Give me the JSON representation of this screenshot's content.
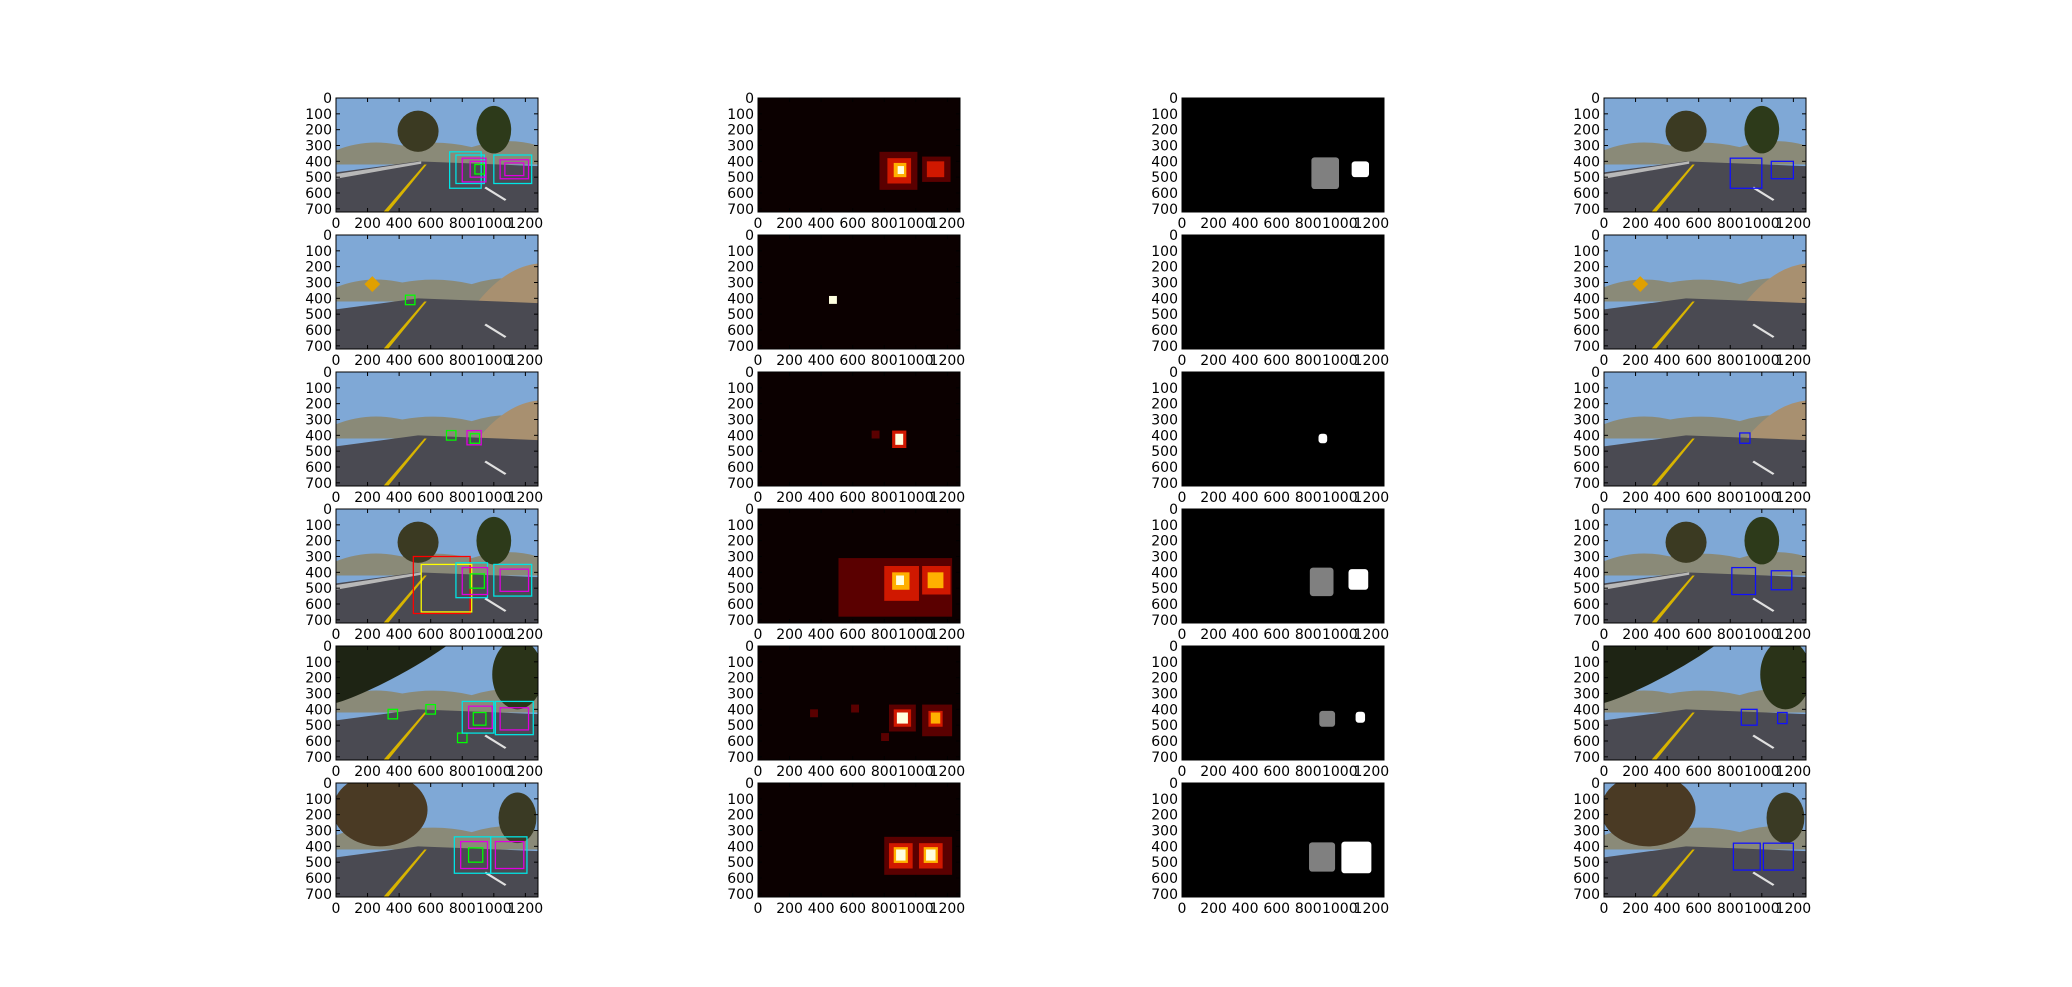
{
  "chart_data": {
    "type": "image-grid",
    "rows": 6,
    "cols": 4,
    "xlim": [
      0,
      1280
    ],
    "ylim": [
      720,
      0
    ],
    "xticks": [
      0,
      200,
      400,
      600,
      800,
      1000,
      1200
    ],
    "yticks": [
      0,
      100,
      200,
      300,
      400,
      500,
      600,
      700
    ],
    "xtick_labels": [
      "0",
      "200",
      "400",
      "600",
      "800",
      "1000",
      "1200"
    ],
    "ytick_labels": [
      "0",
      "100",
      "200",
      "300",
      "400",
      "500",
      "600",
      "700"
    ],
    "column_kinds": [
      "sliding-window detections",
      "heatmap",
      "labels",
      "final detections"
    ],
    "colors": {
      "sky": "#7fa8d6",
      "hills": "#8a8a78",
      "road": "#4a4a52",
      "lane_yellow": "#d8b400",
      "window_cyan": "#00e5e5",
      "window_magenta": "#e000e0",
      "window_green": "#00ff00",
      "window_red": "#ff0000",
      "window_yellow": "#ffff00",
      "box_blue": "#1010ff",
      "heat_bg": "#0b0000",
      "heat_low": "#5a0000",
      "heat_mid": "#d01800",
      "heat_high": "#ffb000",
      "heat_peak": "#ffffe0",
      "label_bg": "#000000",
      "label_gray": "#808080",
      "label_white": "#ffffff"
    },
    "panels": [
      {
        "scene": {
          "variant": "bridge",
          "tree_x": 520
        },
        "windows": [
          {
            "x": 720,
            "y": 340,
            "w": 200,
            "h": 230,
            "color": "cyan"
          },
          {
            "x": 760,
            "y": 360,
            "w": 180,
            "h": 180,
            "color": "cyan"
          },
          {
            "x": 800,
            "y": 380,
            "w": 150,
            "h": 150,
            "color": "magenta"
          },
          {
            "x": 850,
            "y": 400,
            "w": 100,
            "h": 100,
            "color": "magenta"
          },
          {
            "x": 880,
            "y": 420,
            "w": 60,
            "h": 60,
            "color": "green"
          },
          {
            "x": 1000,
            "y": 360,
            "w": 240,
            "h": 180,
            "color": "cyan"
          },
          {
            "x": 1040,
            "y": 390,
            "w": 180,
            "h": 120,
            "color": "magenta"
          },
          {
            "x": 1070,
            "y": 410,
            "w": 120,
            "h": 80,
            "color": "magenta"
          }
        ],
        "heat": [
          {
            "x": 770,
            "y": 340,
            "w": 240,
            "h": 240,
            "level": 1
          },
          {
            "x": 820,
            "y": 380,
            "w": 150,
            "h": 160,
            "level": 2
          },
          {
            "x": 860,
            "y": 410,
            "w": 80,
            "h": 90,
            "level": 3
          },
          {
            "x": 885,
            "y": 430,
            "w": 40,
            "h": 50,
            "level": 4
          },
          {
            "x": 1040,
            "y": 370,
            "w": 180,
            "h": 160,
            "level": 1
          },
          {
            "x": 1070,
            "y": 400,
            "w": 110,
            "h": 100,
            "level": 2
          }
        ],
        "labels": [
          {
            "x": 820,
            "y": 375,
            "w": 175,
            "h": 200,
            "color": "gray"
          },
          {
            "x": 1075,
            "y": 400,
            "w": 110,
            "h": 100,
            "color": "white"
          }
        ],
        "final": [
          {
            "x": 800,
            "y": 380,
            "w": 200,
            "h": 190
          },
          {
            "x": 1060,
            "y": 400,
            "w": 140,
            "h": 110
          }
        ]
      },
      {
        "scene": {
          "variant": "hills",
          "sign": true
        },
        "windows": [
          {
            "x": 440,
            "y": 380,
            "w": 60,
            "h": 60,
            "color": "green"
          }
        ],
        "heat": [
          {
            "x": 450,
            "y": 385,
            "w": 50,
            "h": 50,
            "level": 4
          }
        ],
        "labels": [],
        "final": []
      },
      {
        "scene": {
          "variant": "hills",
          "sign": false
        },
        "windows": [
          {
            "x": 700,
            "y": 370,
            "w": 60,
            "h": 60,
            "color": "green"
          },
          {
            "x": 830,
            "y": 370,
            "w": 90,
            "h": 90,
            "color": "magenta"
          },
          {
            "x": 850,
            "y": 390,
            "w": 60,
            "h": 60,
            "color": "green"
          }
        ],
        "heat": [
          {
            "x": 720,
            "y": 370,
            "w": 50,
            "h": 50,
            "level": 1
          },
          {
            "x": 850,
            "y": 370,
            "w": 90,
            "h": 110,
            "level": 2
          },
          {
            "x": 870,
            "y": 390,
            "w": 50,
            "h": 70,
            "level": 4
          }
        ],
        "labels": [
          {
            "x": 865,
            "y": 390,
            "w": 55,
            "h": 60,
            "color": "white"
          }
        ],
        "final": [
          {
            "x": 860,
            "y": 385,
            "w": 65,
            "h": 65
          }
        ]
      },
      {
        "scene": {
          "variant": "bridge",
          "tree_x": 520
        },
        "windows": [
          {
            "x": 490,
            "y": 300,
            "w": 360,
            "h": 360,
            "color": "red"
          },
          {
            "x": 540,
            "y": 350,
            "w": 320,
            "h": 300,
            "color": "yellow"
          },
          {
            "x": 760,
            "y": 340,
            "w": 200,
            "h": 220,
            "color": "cyan"
          },
          {
            "x": 800,
            "y": 370,
            "w": 160,
            "h": 170,
            "color": "magenta"
          },
          {
            "x": 850,
            "y": 410,
            "w": 90,
            "h": 90,
            "color": "green"
          },
          {
            "x": 1000,
            "y": 350,
            "w": 240,
            "h": 200,
            "color": "cyan"
          },
          {
            "x": 1040,
            "y": 380,
            "w": 180,
            "h": 140,
            "color": "magenta"
          }
        ],
        "heat": [
          {
            "x": 510,
            "y": 310,
            "w": 720,
            "h": 370,
            "level": 1
          },
          {
            "x": 800,
            "y": 360,
            "w": 220,
            "h": 220,
            "level": 2
          },
          {
            "x": 850,
            "y": 400,
            "w": 110,
            "h": 110,
            "level": 3
          },
          {
            "x": 875,
            "y": 420,
            "w": 50,
            "h": 60,
            "level": 4
          },
          {
            "x": 1040,
            "y": 360,
            "w": 180,
            "h": 180,
            "level": 2
          },
          {
            "x": 1075,
            "y": 400,
            "w": 100,
            "h": 100,
            "level": 3
          }
        ],
        "labels": [
          {
            "x": 810,
            "y": 370,
            "w": 150,
            "h": 180,
            "color": "gray"
          },
          {
            "x": 1055,
            "y": 380,
            "w": 125,
            "h": 130,
            "color": "white"
          }
        ],
        "final": [
          {
            "x": 810,
            "y": 370,
            "w": 150,
            "h": 170
          },
          {
            "x": 1060,
            "y": 390,
            "w": 130,
            "h": 120
          }
        ]
      },
      {
        "scene": {
          "variant": "trees"
        },
        "windows": [
          {
            "x": 330,
            "y": 400,
            "w": 60,
            "h": 60,
            "color": "green"
          },
          {
            "x": 570,
            "y": 370,
            "w": 60,
            "h": 60,
            "color": "green"
          },
          {
            "x": 770,
            "y": 550,
            "w": 60,
            "h": 60,
            "color": "green"
          },
          {
            "x": 800,
            "y": 350,
            "w": 200,
            "h": 200,
            "color": "cyan"
          },
          {
            "x": 840,
            "y": 380,
            "w": 150,
            "h": 140,
            "color": "magenta"
          },
          {
            "x": 870,
            "y": 420,
            "w": 80,
            "h": 80,
            "color": "green"
          },
          {
            "x": 1010,
            "y": 350,
            "w": 240,
            "h": 210,
            "color": "cyan"
          },
          {
            "x": 1040,
            "y": 390,
            "w": 180,
            "h": 140,
            "color": "magenta"
          }
        ],
        "heat": [
          {
            "x": 330,
            "y": 400,
            "w": 50,
            "h": 50,
            "level": 1
          },
          {
            "x": 590,
            "y": 370,
            "w": 50,
            "h": 50,
            "level": 1
          },
          {
            "x": 780,
            "y": 550,
            "w": 50,
            "h": 50,
            "level": 1
          },
          {
            "x": 830,
            "y": 370,
            "w": 170,
            "h": 170,
            "level": 1
          },
          {
            "x": 860,
            "y": 400,
            "w": 110,
            "h": 110,
            "level": 2
          },
          {
            "x": 880,
            "y": 420,
            "w": 70,
            "h": 70,
            "level": 4
          },
          {
            "x": 1040,
            "y": 370,
            "w": 190,
            "h": 200,
            "level": 1
          },
          {
            "x": 1080,
            "y": 410,
            "w": 90,
            "h": 100,
            "level": 2
          },
          {
            "x": 1095,
            "y": 420,
            "w": 60,
            "h": 70,
            "level": 3
          }
        ],
        "labels": [
          {
            "x": 870,
            "y": 410,
            "w": 100,
            "h": 100,
            "color": "gray"
          },
          {
            "x": 1100,
            "y": 415,
            "w": 60,
            "h": 70,
            "color": "white"
          }
        ],
        "final": [
          {
            "x": 870,
            "y": 400,
            "w": 100,
            "h": 100
          },
          {
            "x": 1100,
            "y": 420,
            "w": 60,
            "h": 70
          }
        ]
      },
      {
        "scene": {
          "variant": "trees-left"
        },
        "windows": [
          {
            "x": 750,
            "y": 340,
            "w": 230,
            "h": 230,
            "color": "cyan"
          },
          {
            "x": 790,
            "y": 370,
            "w": 170,
            "h": 170,
            "color": "magenta"
          },
          {
            "x": 840,
            "y": 410,
            "w": 90,
            "h": 90,
            "color": "green"
          },
          {
            "x": 980,
            "y": 340,
            "w": 230,
            "h": 230,
            "color": "cyan"
          },
          {
            "x": 1010,
            "y": 370,
            "w": 180,
            "h": 170,
            "color": "magenta"
          }
        ],
        "heat": [
          {
            "x": 800,
            "y": 340,
            "w": 430,
            "h": 240,
            "level": 1
          },
          {
            "x": 830,
            "y": 380,
            "w": 150,
            "h": 160,
            "level": 2
          },
          {
            "x": 860,
            "y": 405,
            "w": 90,
            "h": 100,
            "level": 3
          },
          {
            "x": 875,
            "y": 420,
            "w": 60,
            "h": 70,
            "level": 4
          },
          {
            "x": 1020,
            "y": 380,
            "w": 150,
            "h": 160,
            "level": 2
          },
          {
            "x": 1050,
            "y": 405,
            "w": 90,
            "h": 100,
            "level": 3
          },
          {
            "x": 1065,
            "y": 420,
            "w": 60,
            "h": 70,
            "level": 4
          }
        ],
        "labels": [
          {
            "x": 805,
            "y": 375,
            "w": 165,
            "h": 185,
            "color": "gray"
          },
          {
            "x": 1010,
            "y": 370,
            "w": 190,
            "h": 200,
            "color": "white"
          }
        ],
        "final": [
          {
            "x": 820,
            "y": 380,
            "w": 170,
            "h": 170
          },
          {
            "x": 1010,
            "y": 380,
            "w": 190,
            "h": 170
          }
        ]
      }
    ]
  }
}
